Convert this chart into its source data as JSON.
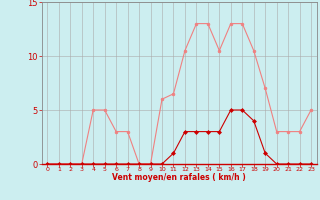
{
  "x": [
    0,
    1,
    2,
    3,
    4,
    5,
    6,
    7,
    8,
    9,
    10,
    11,
    12,
    13,
    14,
    15,
    16,
    17,
    18,
    19,
    20,
    21,
    22,
    23
  ],
  "rafales": [
    0,
    0,
    0,
    0,
    5,
    5,
    3,
    3,
    0,
    0,
    6,
    6.5,
    10.5,
    13,
    13,
    10.5,
    13,
    13,
    10.5,
    7,
    3,
    3,
    3,
    5
  ],
  "moyen": [
    0,
    0,
    0,
    0,
    0,
    0,
    0,
    0,
    0,
    0,
    0,
    1,
    3,
    3,
    3,
    3,
    5,
    5,
    4,
    1,
    0,
    0,
    0,
    0
  ],
  "bg_color": "#cceef0",
  "grid_color": "#aaaaaa",
  "line_color_rafales": "#f08080",
  "line_color_moyen": "#cc0000",
  "marker_color_rafales": "#f08080",
  "marker_color_moyen": "#cc0000",
  "xlabel": "Vent moyen/en rafales ( km/h )",
  "ylim": [
    0,
    15
  ],
  "xlim": [
    -0.5,
    23.5
  ],
  "yticks": [
    0,
    5,
    10,
    15
  ],
  "xticks": [
    0,
    1,
    2,
    3,
    4,
    5,
    6,
    7,
    8,
    9,
    10,
    11,
    12,
    13,
    14,
    15,
    16,
    17,
    18,
    19,
    20,
    21,
    22,
    23
  ],
  "xlabel_color": "#cc0000",
  "tick_color": "#cc0000",
  "axis_color": "#888888"
}
